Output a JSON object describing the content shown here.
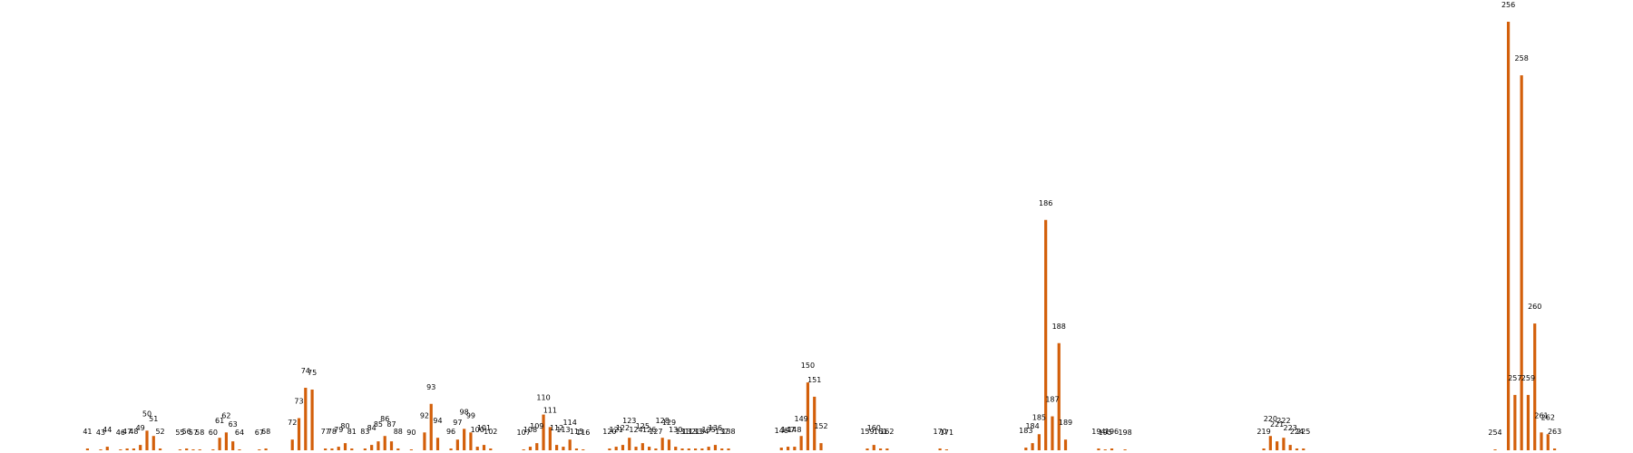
{
  "chart_data": {
    "type": "bar",
    "title": "",
    "xlabel": "",
    "ylabel": "",
    "grid": false,
    "bar_color": "#d35f0a",
    "label_color": "#000000",
    "x_range": [
      36,
      268
    ],
    "ylim": [
      0,
      240
    ],
    "categories": [
      41,
      43,
      44,
      46,
      47,
      48,
      49,
      50,
      51,
      52,
      55,
      56,
      57,
      58,
      60,
      61,
      62,
      63,
      64,
      67,
      68,
      72,
      73,
      74,
      75,
      77,
      78,
      79,
      80,
      81,
      83,
      84,
      85,
      86,
      87,
      88,
      90,
      92,
      93,
      94,
      96,
      97,
      98,
      99,
      100,
      101,
      102,
      107,
      108,
      109,
      110,
      111,
      112,
      113,
      114,
      115,
      116,
      120,
      121,
      122,
      123,
      124,
      125,
      126,
      127,
      128,
      129,
      130,
      131,
      132,
      133,
      134,
      135,
      136,
      137,
      138,
      146,
      147,
      148,
      149,
      150,
      151,
      152,
      159,
      160,
      161,
      162,
      170,
      171,
      183,
      184,
      185,
      186,
      187,
      188,
      189,
      194,
      195,
      196,
      198,
      219,
      220,
      221,
      222,
      223,
      224,
      225,
      254,
      256,
      257,
      258,
      259,
      260,
      261,
      262,
      263
    ],
    "values": [
      1,
      0.5,
      2,
      0.5,
      1,
      1,
      3,
      11,
      8,
      1,
      0.5,
      1,
      0.5,
      0.5,
      0.5,
      7,
      10,
      5,
      0.5,
      0.5,
      1,
      6,
      18,
      35,
      34,
      1,
      1,
      2,
      4,
      1,
      1,
      3,
      5,
      8,
      5,
      1,
      0.5,
      10,
      26,
      7,
      1,
      6,
      12,
      10,
      2,
      3,
      1,
      0.5,
      2,
      4,
      20,
      13,
      3,
      2,
      6,
      1,
      0.5,
      1,
      2,
      3,
      7,
      2,
      4,
      2,
      1,
      7,
      6,
      2,
      1,
      1,
      1,
      1,
      2,
      3,
      1,
      1,
      1.5,
      2,
      2,
      8,
      38,
      30,
      4,
      1,
      3,
      1,
      1,
      1,
      0.5,
      1.5,
      4,
      9,
      129,
      19,
      60,
      6,
      1,
      0.5,
      1,
      0.5,
      1,
      8,
      5,
      7,
      3,
      1,
      1,
      0.5,
      240,
      31,
      210,
      31,
      71,
      10,
      9,
      1
    ],
    "labels": [
      "41",
      "43",
      "44",
      "46",
      "47",
      "48",
      "49",
      "50",
      "51",
      "52",
      "55",
      "56",
      "57",
      "58",
      "60",
      "61",
      "62",
      "63",
      "64",
      "67",
      "68",
      "72",
      "73",
      "74",
      "75",
      "77",
      "78",
      "79",
      "80",
      "81",
      "83",
      "84",
      "85",
      "86",
      "87",
      "88",
      "90",
      "92",
      "93",
      "94",
      "96",
      "97",
      "98",
      "99",
      "100",
      "101",
      "102",
      "107",
      "108",
      "109",
      "110",
      "111",
      "112",
      "113",
      "114",
      "115",
      "116",
      "120",
      "121",
      "122",
      "123",
      "124",
      "125",
      "126",
      "127",
      "128",
      "129",
      "130",
      "131",
      "132",
      "133",
      "134",
      "135",
      "136",
      "137",
      "138",
      "146",
      "147",
      "148",
      "149",
      "150",
      "151",
      "152",
      "159",
      "160",
      "161",
      "162",
      "170",
      "171",
      "183",
      "184",
      "185",
      "186",
      "187",
      "188",
      "189",
      "194",
      "195",
      "196",
      "198",
      "219",
      "220",
      "221",
      "222",
      "223",
      "224",
      "225",
      "254",
      "256",
      "257",
      "258",
      "259",
      "260",
      "261",
      "262",
      "263"
    ]
  }
}
